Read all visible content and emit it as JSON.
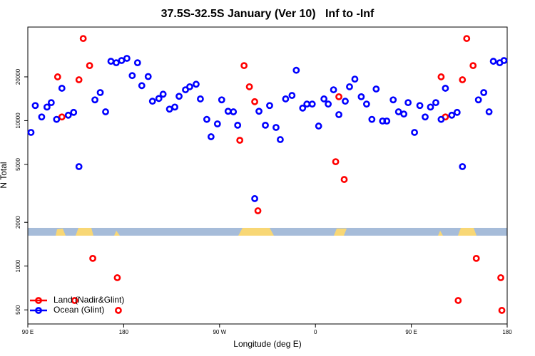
{
  "chart_data": {
    "type": "scatter",
    "title": "37.5S-32.5S January (Ver 10)   Inf to -Inf",
    "x_label": "Longitude (deg E)",
    "y_label": "N Total",
    "log_y": true,
    "legend": "bottom-left",
    "xlim": [
      90,
      540
    ],
    "ylim": [
      400,
      44000
    ],
    "xticks": [
      {
        "value": 90,
        "label": "90 E"
      },
      180,
      {
        "value": 270,
        "label": "90 W"
      },
      {
        "value": 360,
        "label": "0"
      },
      {
        "value": 450,
        "label": "90 E"
      },
      {
        "value": 540,
        "label": "180"
      }
    ],
    "yticks": [
      500,
      1000,
      2000,
      5000,
      10000,
      20000
    ],
    "series": [
      {
        "name": "Land (Nadir&Glint)",
        "color": "#ff0000",
        "x": [
          118,
          122,
          138,
          142,
          148,
          151,
          174,
          175,
          134,
          289,
          293,
          298,
          303,
          306,
          379,
          382,
          387,
          478,
          482,
          498,
          502,
          508,
          511,
          534,
          535,
          494
        ],
        "values": [
          20000,
          10600,
          19100,
          36700,
          23900,
          1130,
          832,
          496,
          580,
          7330,
          23900,
          17100,
          13500,
          2400,
          5220,
          14600,
          3940,
          20000,
          10600,
          19100,
          36700,
          23900,
          1130,
          832,
          496,
          580
        ]
      },
      {
        "name": "Ocean (Glint)",
        "color": "#0000ff",
        "x": [
          93,
          97,
          103,
          108,
          112,
          117,
          122,
          128,
          133,
          138,
          153,
          158,
          163,
          168,
          173,
          178,
          183,
          188,
          193,
          197,
          203,
          207,
          213,
          217,
          223,
          228,
          232,
          238,
          242,
          248,
          252,
          258,
          262,
          268,
          272,
          278,
          283,
          287,
          303,
          307,
          313,
          317,
          323,
          327,
          332,
          338,
          342,
          348,
          352,
          357,
          363,
          368,
          372,
          377,
          382,
          388,
          392,
          397,
          403,
          408,
          413,
          417,
          423,
          427,
          433,
          438,
          443,
          447,
          453,
          458,
          463,
          468,
          473,
          478,
          482,
          488,
          493,
          498,
          513,
          518,
          523,
          527,
          533,
          537
        ],
        "values": [
          8300,
          12700,
          10600,
          12400,
          13300,
          10200,
          16700,
          10900,
          11400,
          4830,
          13900,
          15600,
          11500,
          25600,
          25000,
          25900,
          26800,
          20400,
          25000,
          17400,
          20100,
          13600,
          14200,
          15200,
          12000,
          12400,
          14700,
          16300,
          17100,
          17800,
          14100,
          10200,
          7750,
          9500,
          13900,
          11600,
          11500,
          9300,
          2910,
          11600,
          9300,
          12700,
          8980,
          7410,
          14100,
          14900,
          22200,
          12200,
          13000,
          13000,
          9180,
          14100,
          13000,
          16300,
          11000,
          13600,
          17100,
          19300,
          14600,
          13000,
          10200,
          16500,
          9940,
          9940,
          13900,
          11500,
          11100,
          13300,
          8300,
          12700,
          10600,
          12400,
          13300,
          10200,
          16700,
          10900,
          11400,
          4830,
          13900,
          15600,
          11500,
          25600,
          25000,
          25900
        ]
      }
    ]
  }
}
